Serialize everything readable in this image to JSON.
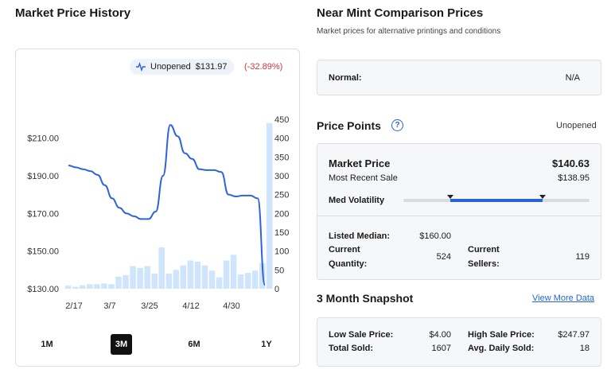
{
  "left": {
    "title": "Market Price History",
    "pill": {
      "label": "Unopened",
      "price": "$131.97"
    },
    "change": "(-32.89%)",
    "ranges": [
      "1M",
      "3M",
      "6M",
      "1Y"
    ],
    "active_range": "3M"
  },
  "right": {
    "title": "Near Mint Comparison Prices",
    "subtitle": "Market prices for alternative printings and conditions",
    "normal": {
      "label": "Normal:",
      "value": "N/A"
    },
    "price_points": {
      "title": "Price Points",
      "help": "?",
      "variant": "Unopened",
      "market_price_label": "Market Price",
      "market_price": "$140.63",
      "recent_sale_label": "Most Recent Sale",
      "recent_sale": "$138.95",
      "volatility_label": "Med Volatility",
      "volatility_level": 0.5,
      "listed_median_label": "Listed Median:",
      "listed_median": "$160.00",
      "current_quantity_label_1": "Current",
      "current_quantity_label_2": "Quantity:",
      "current_quantity": "524",
      "current_sellers_label_1": "Current",
      "current_sellers_label_2": "Sellers:",
      "current_sellers": "119"
    },
    "snapshot": {
      "title": "3 Month Snapshot",
      "link": "View More Data",
      "low_label": "Low Sale Price:",
      "low": "$4.00",
      "high_label": "High Sale Price:",
      "high": "$247.97",
      "total_label": "Total Sold:",
      "total": "1607",
      "avg_label": "Avg. Daily Sold:",
      "avg": "18"
    }
  },
  "chart_data": {
    "type": "line",
    "x_tick_labels": [
      "2/17",
      "3/7",
      "3/25",
      "4/12",
      "4/30"
    ],
    "y_left_ticks": [
      "$130.00",
      "$150.00",
      "$170.00",
      "$190.00",
      "$210.00"
    ],
    "y_left_range": [
      130,
      220
    ],
    "y_right_ticks": [
      "0",
      "50",
      "100",
      "150",
      "200",
      "250",
      "300",
      "350",
      "400",
      "450"
    ],
    "y_right_range": [
      0,
      450
    ],
    "series": [
      {
        "kind": "line",
        "values": [
          195.5,
          194.5,
          193.5,
          192.5,
          190.5,
          185,
          178,
          173,
          170,
          168.5,
          167,
          167,
          171,
          190,
          217,
          211,
          202,
          199,
          193.5,
          193,
          193,
          192,
          180,
          179,
          179.5,
          179.5,
          178,
          132
        ]
      },
      {
        "kind": "bar",
        "values": [
          8,
          5,
          9,
          12,
          12,
          14,
          12,
          32,
          36,
          60,
          55,
          60,
          40,
          110,
          40,
          50,
          62,
          75,
          72,
          62,
          48,
          30,
          75,
          90,
          38,
          42,
          48,
          68,
          440
        ]
      }
    ]
  }
}
